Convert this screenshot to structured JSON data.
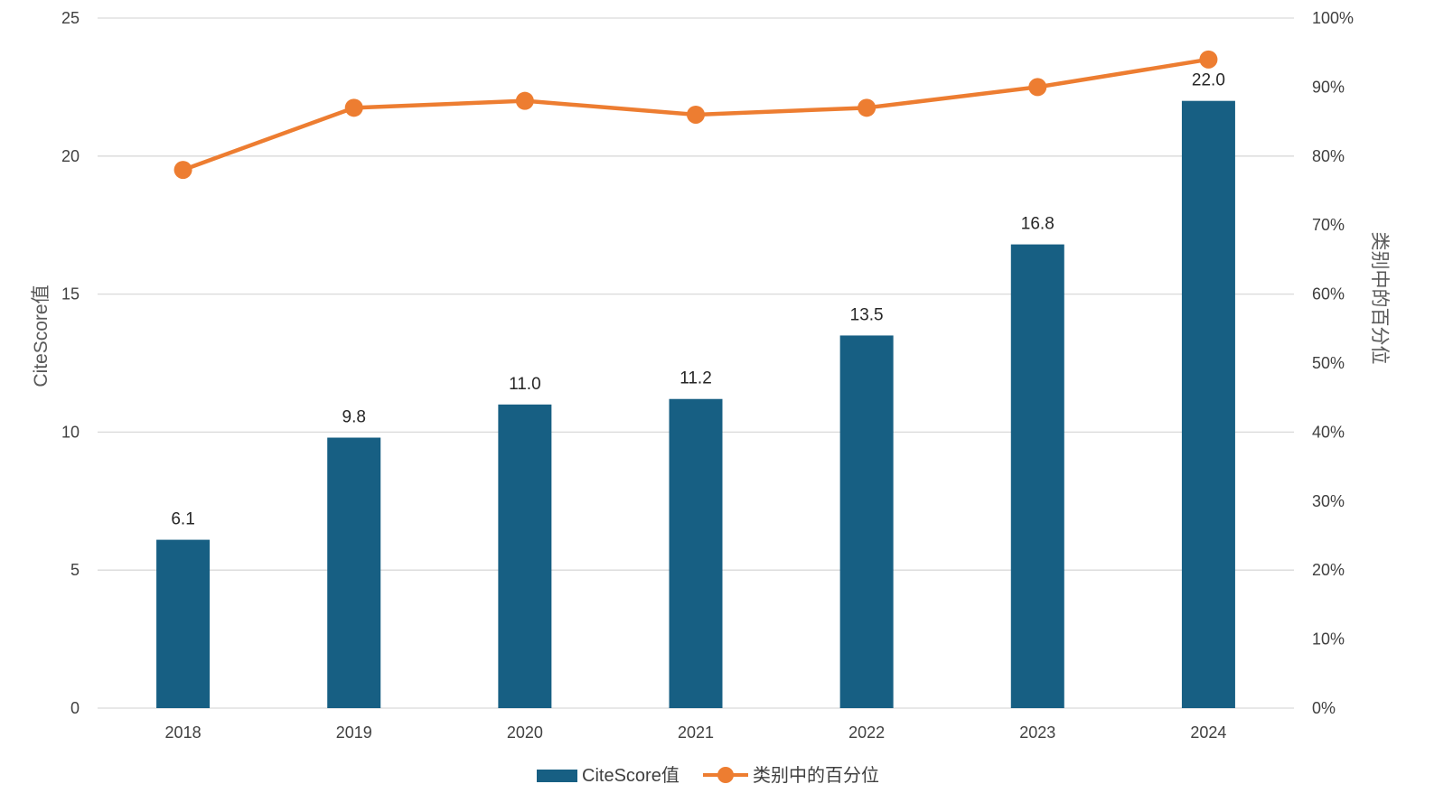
{
  "chart_data": {
    "type": "bar",
    "categories": [
      "2018",
      "2019",
      "2020",
      "2021",
      "2022",
      "2023",
      "2024"
    ],
    "series": [
      {
        "name": "CiteScore值",
        "type": "bar",
        "axis": "left",
        "color": "#175F83",
        "values": [
          6.1,
          9.8,
          11.0,
          11.2,
          13.5,
          16.8,
          22.0
        ],
        "labels": [
          "6.1",
          "9.8",
          "11.0",
          "11.2",
          "13.5",
          "16.8",
          "22.0"
        ]
      },
      {
        "name": "类别中的百分位",
        "type": "line",
        "axis": "right",
        "color": "#ED7D31",
        "values": [
          78,
          87,
          88,
          86,
          87,
          90,
          94
        ]
      }
    ],
    "y_left": {
      "label": "CiteScore值",
      "ylim": [
        0,
        25
      ],
      "ticks": [
        0,
        5,
        10,
        15,
        20,
        25
      ],
      "tick_labels": [
        "0",
        "5",
        "10",
        "15",
        "20",
        "25"
      ]
    },
    "y_right": {
      "label": "类别中的百分位",
      "ylim": [
        0,
        100
      ],
      "ticks": [
        0,
        10,
        20,
        30,
        40,
        50,
        60,
        70,
        80,
        90,
        100
      ],
      "tick_labels": [
        "0%",
        "10%",
        "20%",
        "30%",
        "40%",
        "50%",
        "60%",
        "70%",
        "80%",
        "90%",
        "100%"
      ]
    },
    "grid": true,
    "legend_position": "bottom",
    "gridline_color": "#D9D9D9"
  }
}
